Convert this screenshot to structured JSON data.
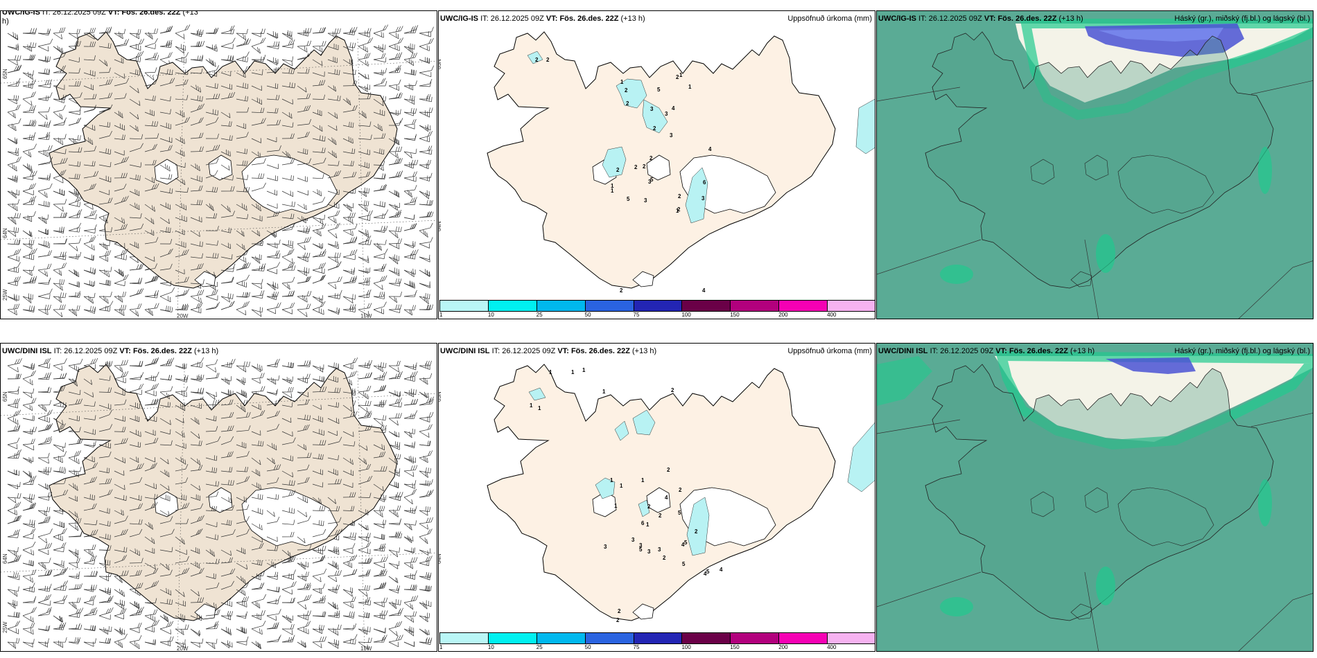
{
  "colors": {
    "land_wind": "#efe3d3",
    "land_precip": "#fdf1e4",
    "sea": "#ffffff",
    "glacier": "#ffffff",
    "precip_light": "#b8f2f3",
    "cloud_low": "#5aab95",
    "cloud_mid": "#21c98e",
    "cloud_high": "#4a52d4"
  },
  "lon_labels": [
    "20W",
    "15W"
  ],
  "lat_labels": [
    "65N",
    "64N",
    "25W"
  ],
  "colorbar": {
    "ticks": [
      "1",
      "10",
      "25",
      "50",
      "75",
      "100",
      "150",
      "200",
      "400"
    ],
    "colors": [
      "#b9f6f6",
      "#00f0f0",
      "#00b8ee",
      "#2a63e0",
      "#2325b4",
      "#6a0047",
      "#b2007d",
      "#f500b4",
      "#f6b2f0"
    ]
  },
  "rows": [
    {
      "model": "UWC/IG-IS",
      "wind": {
        "model": "UWC/IG-IS",
        "it_label": "IT:",
        "it_value": "26.12.2025 09Z",
        "vt_label": "VT:",
        "vt_value": "Fös. 26.des. 22Z",
        "lead": "(+13",
        "lead_wrap": "h)"
      },
      "precip": {
        "model": "UWC/IG-IS",
        "it_label": "IT:",
        "it_value": "26.12.2025 09Z",
        "vt_label": "VT:",
        "vt_value": "Fös. 26.des. 22Z",
        "lead": "(+13 h)",
        "title": "Uppsöfnuð úrkoma (mm)",
        "labels": [
          "2",
          "2",
          "1",
          "2",
          "5",
          "2",
          "1",
          "1",
          "2",
          "3",
          "3",
          "4",
          "2",
          "3",
          "4",
          "2",
          "2",
          "2",
          "2",
          "5",
          "3",
          "5",
          "1",
          "1",
          "2",
          "3",
          "6",
          "3",
          "2",
          "1",
          "4",
          "2"
        ]
      },
      "cloud": {
        "model": "UWC/IG-IS",
        "it_label": "IT:",
        "it_value": "26.12.2025 09Z",
        "vt_label": "VT:",
        "vt_value": "Fös. 26.des. 22Z",
        "lead": "(+13 h)",
        "title": "Háský (gr.), miðský (fj.bl.) og lágský (bl.)"
      }
    },
    {
      "model": "UWC/DINI ISL",
      "wind": {
        "model": "UWC/DINI ISL",
        "it_label": "IT:",
        "it_value": "26.12.2025 09Z",
        "vt_label": "VT:",
        "vt_value": "Fös. 26.des. 22Z",
        "lead": "(+13 h)",
        "lead_wrap": ""
      },
      "precip": {
        "model": "UWC/DINI ISL",
        "it_label": "IT:",
        "it_value": "26.12.2025 09Z",
        "vt_label": "VT:",
        "vt_value": "Fös. 26.des. 22Z",
        "lead": "(+13 h)",
        "title": "Uppsöfnuð úrkoma (mm)",
        "labels": [
          "1",
          "1",
          "1",
          "1",
          "1",
          "1",
          "2",
          "1",
          "1",
          "1",
          "1",
          "2",
          "2",
          "4",
          "5",
          "5",
          "2",
          "3",
          "3",
          "2",
          "3",
          "1",
          "3",
          "6",
          "5",
          "5",
          "2",
          "4",
          "5",
          "4",
          "2",
          "2",
          "2",
          "3",
          "4"
        ]
      },
      "cloud": {
        "model": "UWC/DINI ISL",
        "it_label": "IT:",
        "it_value": "26.12.2025 09Z",
        "vt_label": "VT:",
        "vt_value": "Fös. 26.des. 22Z",
        "lead": "(+13 h)",
        "title": "Háský (gr.), miðský (fj.bl.) og lágský (bl.)"
      }
    }
  ]
}
